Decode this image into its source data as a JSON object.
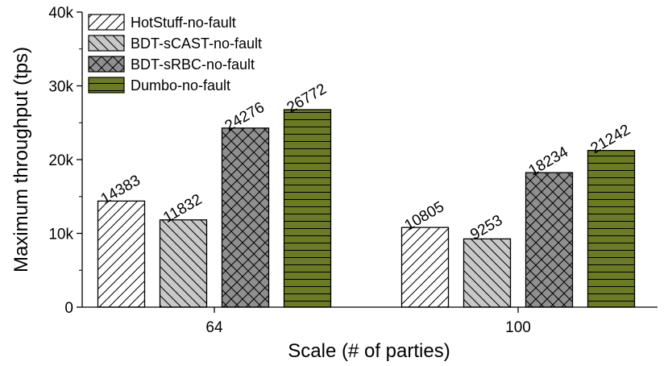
{
  "chart_data": {
    "type": "bar",
    "title": "",
    "xlabel": "Scale (# of parties)",
    "ylabel": "Maximum throughput (tps)",
    "categories": [
      "64",
      "100"
    ],
    "ylim": [
      0,
      40000
    ],
    "yticks": [
      0,
      10000,
      20000,
      30000,
      40000
    ],
    "ytick_labels": [
      "0",
      "10k",
      "20k",
      "30k",
      "40k"
    ],
    "grid": false,
    "legend_position": "top-left",
    "series": [
      {
        "name": "HotStuff-no-fault",
        "values": [
          14383,
          10805
        ],
        "value_labels": [
          "14383",
          "10805"
        ],
        "fill": "#ffffff",
        "pattern": "diag-right"
      },
      {
        "name": "BDT-sCAST-no-fault",
        "values": [
          11832,
          9253
        ],
        "value_labels": [
          "11832",
          "9253"
        ],
        "fill": "#c8c8c8",
        "pattern": "diag-right"
      },
      {
        "name": "BDT-sRBC-no-fault",
        "values": [
          24276,
          18234
        ],
        "value_labels": [
          "24276",
          "18234"
        ],
        "fill": "#8f8f8f",
        "pattern": "cross"
      },
      {
        "name": "Dumbo-no-fault",
        "values": [
          26772,
          21242
        ],
        "value_labels": [
          "26772",
          "21242"
        ],
        "fill": "#6b7a25",
        "pattern": "horizontal"
      }
    ]
  }
}
